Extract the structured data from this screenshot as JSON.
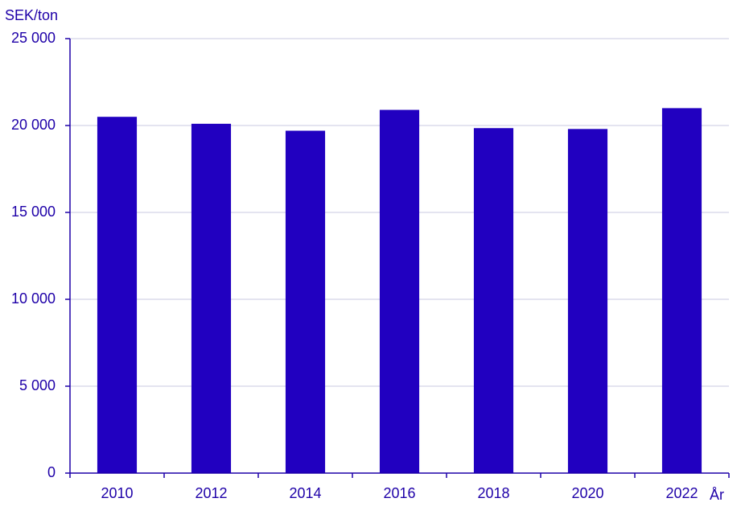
{
  "chart_data": {
    "type": "bar",
    "y_label": "SEK/ton",
    "x_label": "År",
    "categories": [
      "2010",
      "2012",
      "2014",
      "2016",
      "2018",
      "2020",
      "2022"
    ],
    "values": [
      20500,
      20100,
      19700,
      20900,
      19850,
      19800,
      21000
    ],
    "color": "#2100c0",
    "ylim": [
      0,
      25000
    ],
    "yticks": [
      0,
      {
        "value": 5000,
        "label": "5 000"
      },
      {
        "value": 10000,
        "label": "10 000"
      },
      {
        "value": 15000,
        "label": "15 000"
      },
      {
        "value": 20000,
        "label": "20 000"
      },
      {
        "value": 25000,
        "label": "25 000"
      }
    ],
    "grid": true
  }
}
